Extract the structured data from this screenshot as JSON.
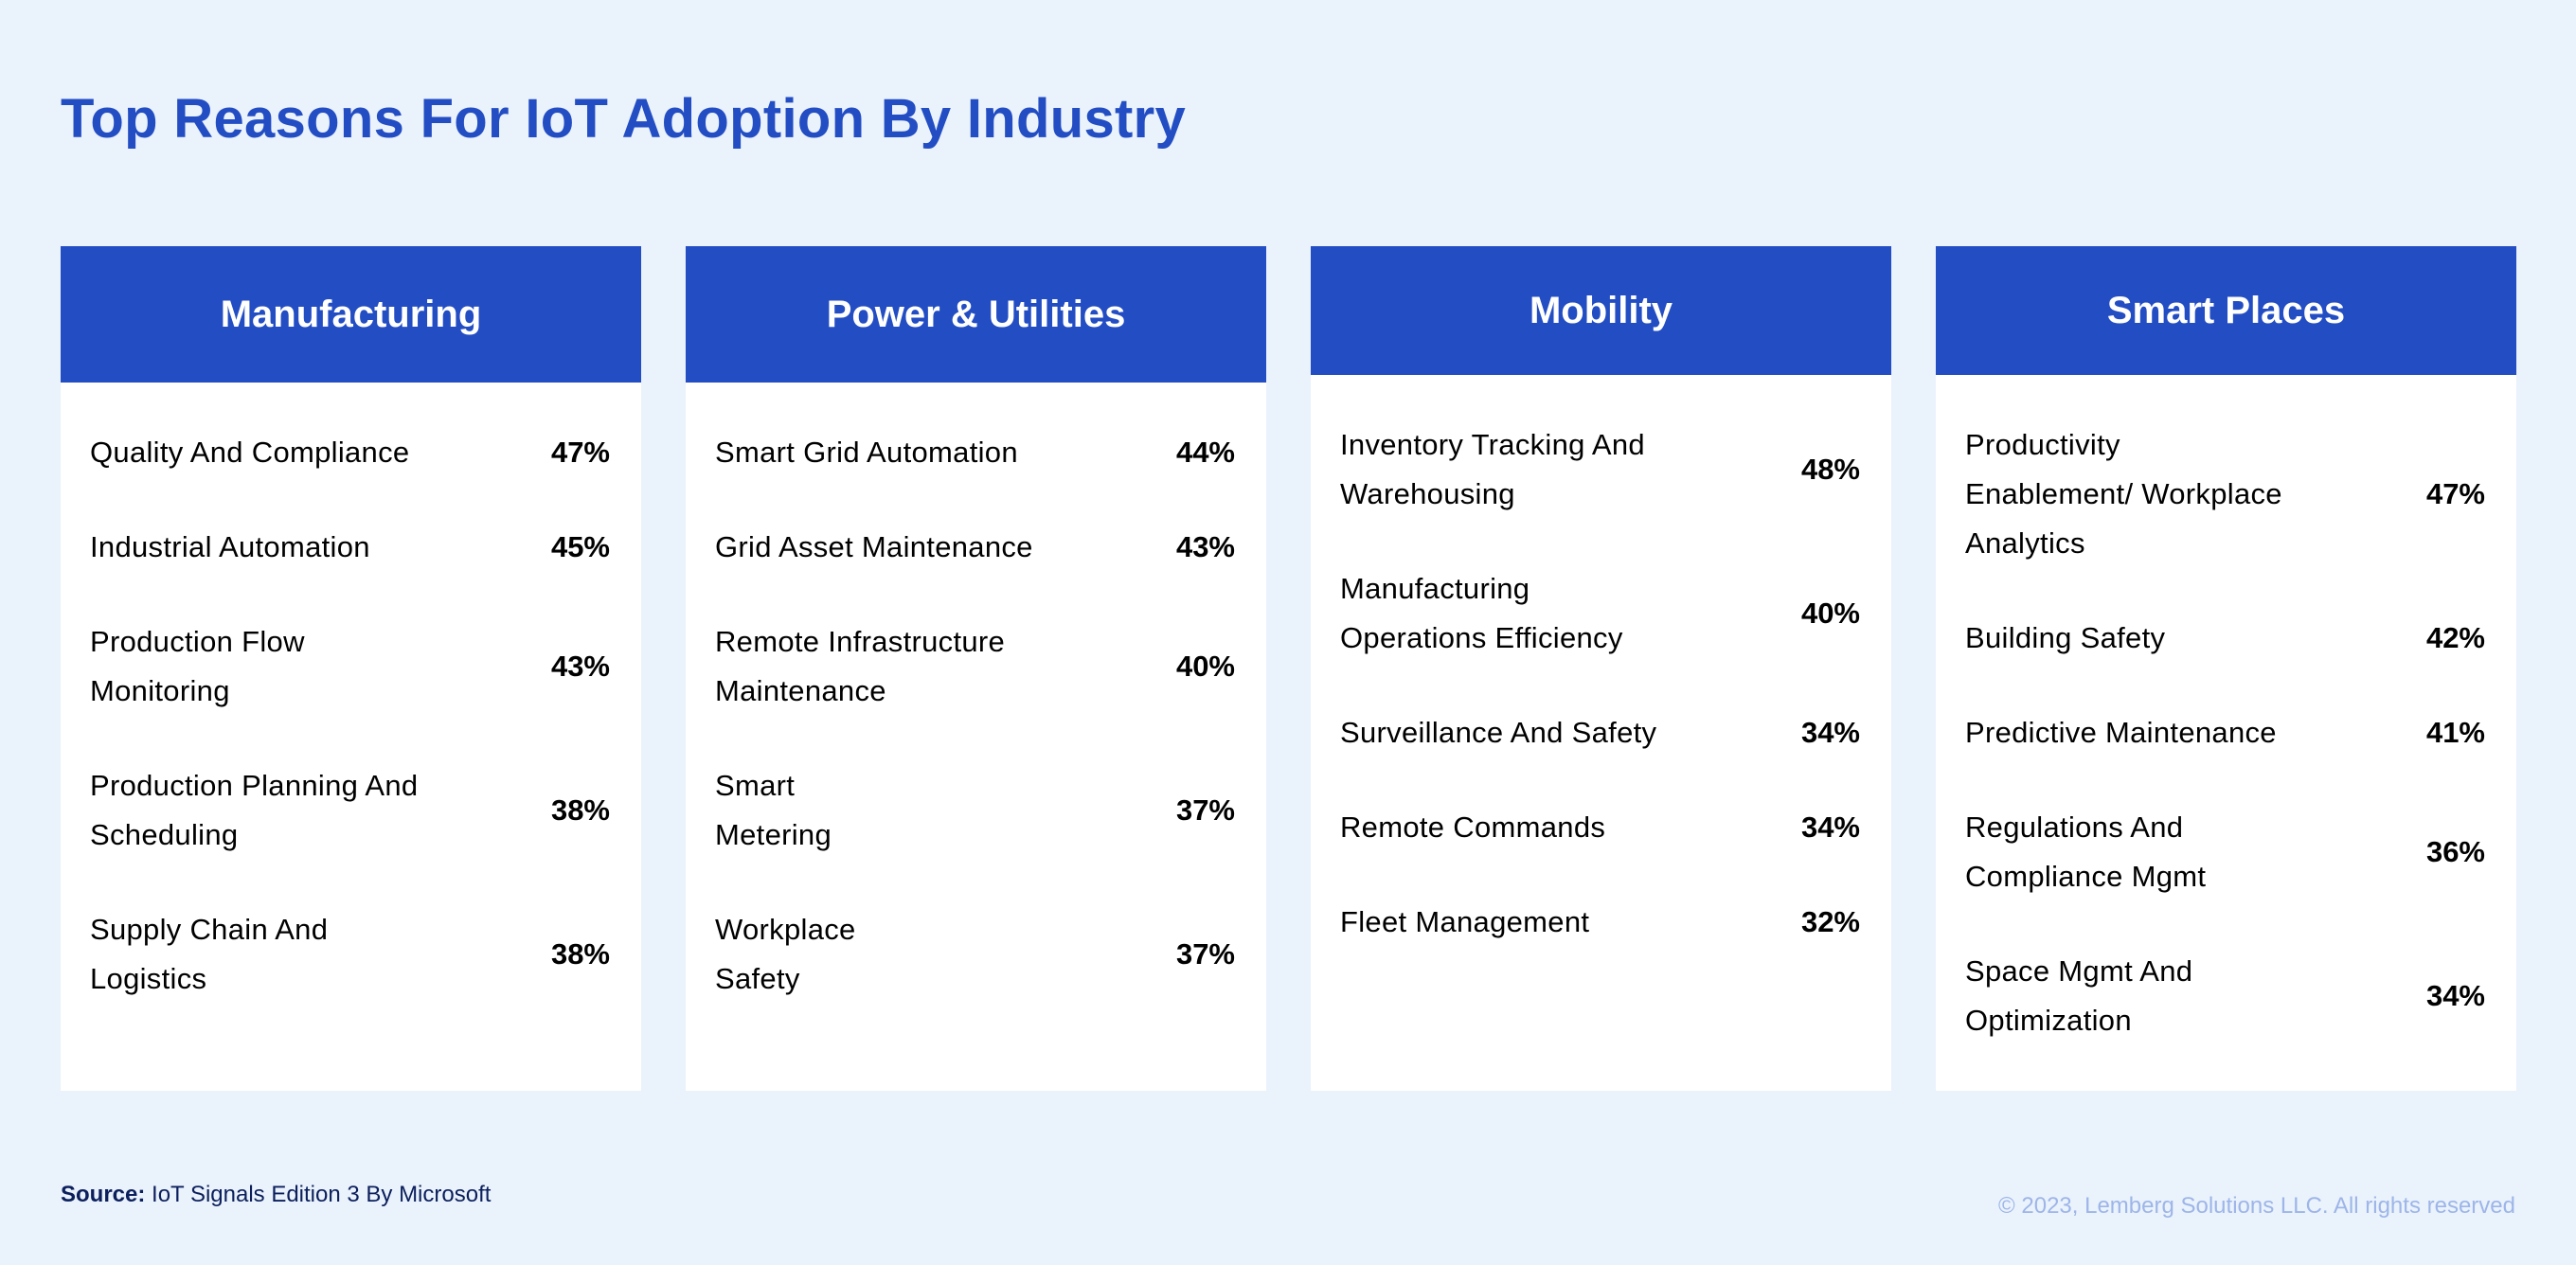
{
  "title": "Top Reasons For IoT Adoption By Industry",
  "colors": {
    "background": "#EAF2FC",
    "accent": "#234DC3",
    "source_text": "#0B1F5C",
    "copyright_text": "#9DB5E8"
  },
  "cards": [
    {
      "title": "Manufacturing",
      "rows": [
        {
          "label": "Quality And Compliance",
          "value": "47%"
        },
        {
          "label": "Industrial Automation",
          "value": "45%"
        },
        {
          "label": "Production Flow\nMonitoring",
          "value": "43%"
        },
        {
          "label": "Production Planning And\nScheduling",
          "value": "38%"
        },
        {
          "label": "Supply Chain And\nLogistics",
          "value": "38%"
        }
      ]
    },
    {
      "title": "Power & Utilities",
      "rows": [
        {
          "label": "Smart Grid Automation",
          "value": "44%"
        },
        {
          "label": "Grid Asset Maintenance",
          "value": "43%"
        },
        {
          "label": "Remote Infrastructure\nMaintenance",
          "value": "40%"
        },
        {
          "label": "Smart\nMetering",
          "value": "37%"
        },
        {
          "label": "Workplace\nSafety",
          "value": "37%"
        }
      ]
    },
    {
      "title": "Mobility",
      "rows": [
        {
          "label": "Inventory Tracking And\nWarehousing",
          "value": "48%"
        },
        {
          "label": "Manufacturing\nOperations Efficiency",
          "value": "40%"
        },
        {
          "label": "Surveillance And Safety",
          "value": "34%"
        },
        {
          "label": "Remote Commands",
          "value": "34%"
        },
        {
          "label": "Fleet Management",
          "value": "32%"
        }
      ]
    },
    {
      "title": "Smart Places",
      "rows": [
        {
          "label": "Productivity\nEnablement/ Workplace\nAnalytics",
          "value": "47%"
        },
        {
          "label": "Building Safety",
          "value": "42%"
        },
        {
          "label": "Predictive Maintenance",
          "value": "41%"
        },
        {
          "label": "Regulations And\nCompliance Mgmt",
          "value": "36%"
        },
        {
          "label": "Space Mgmt And\nOptimization",
          "value": "34%"
        }
      ]
    }
  ],
  "footer": {
    "source_label": "Source:",
    "source_text": " IoT Signals Edition 3 By Microsoft",
    "copyright": "© 2023, Lemberg Solutions LLC. All rights reserved"
  }
}
